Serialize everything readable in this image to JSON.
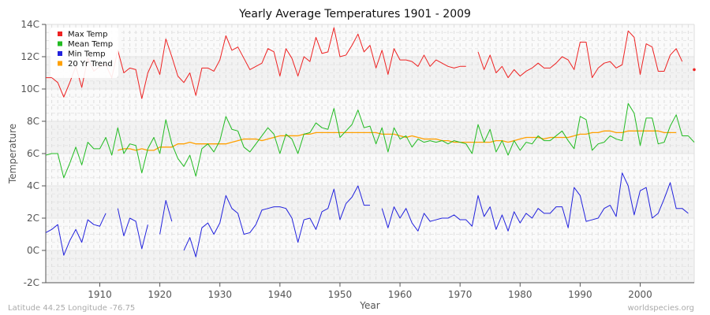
{
  "chart_data": {
    "type": "line",
    "title": "Yearly Average Temperatures 1901 - 2009",
    "xlabel": "Year",
    "ylabel": "Temperature",
    "xlim": [
      1901,
      2009
    ],
    "ylim": [
      -2,
      14
    ],
    "x_ticks": [
      1910,
      1920,
      1930,
      1940,
      1950,
      1960,
      1970,
      1980,
      1990,
      2000
    ],
    "y_ticks": [
      -2,
      0,
      2,
      4,
      6,
      8,
      10,
      12,
      14
    ],
    "y_tick_labels": [
      "-2C",
      "0C",
      "2C",
      "4C",
      "6C",
      "8C",
      "10C",
      "12C",
      "14C"
    ],
    "grid": true,
    "legend_position": "top-left",
    "start_year": 1901,
    "series": [
      {
        "name": "Max Temp",
        "color": "#ee2222",
        "values": [
          10.7,
          10.7,
          10.4,
          9.5,
          10.4,
          11.4,
          10.1,
          11.9,
          11.1,
          11.4,
          11.5,
          10.7,
          12.4,
          11.0,
          11.3,
          11.2,
          9.4,
          11.0,
          11.8,
          10.9,
          13.1,
          12.0,
          10.8,
          10.4,
          11.0,
          9.6,
          11.3,
          11.3,
          11.1,
          11.8,
          13.3,
          12.4,
          12.6,
          11.9,
          11.2,
          11.4,
          11.6,
          12.5,
          12.3,
          10.8,
          12.5,
          11.9,
          10.8,
          12.0,
          11.7,
          13.2,
          12.2,
          12.3,
          13.8,
          12.0,
          12.1,
          12.7,
          13.4,
          12.3,
          12.7,
          11.3,
          12.4,
          10.9,
          12.5,
          11.8,
          11.8,
          11.7,
          11.4,
          12.1,
          11.4,
          11.8,
          11.6,
          11.4,
          11.3,
          11.4,
          11.4,
          null,
          12.3,
          11.2,
          12.1,
          11.0,
          11.4,
          10.7,
          11.2,
          10.8,
          11.1,
          11.3,
          11.6,
          11.3,
          11.3,
          11.6,
          12.0,
          11.8,
          11.2,
          12.9,
          12.9,
          10.7,
          11.3,
          11.6,
          11.7,
          11.3,
          11.5,
          13.6,
          13.2,
          10.9,
          12.8,
          12.6,
          11.1,
          11.1,
          12.1,
          12.5,
          11.7,
          null,
          11.2
        ]
      },
      {
        "name": "Mean Temp",
        "color": "#22bb22",
        "values": [
          5.9,
          6.0,
          6.0,
          4.5,
          5.4,
          6.4,
          5.3,
          6.7,
          6.3,
          6.3,
          7.0,
          5.9,
          7.6,
          6.0,
          6.6,
          6.5,
          4.8,
          6.3,
          7.0,
          6.0,
          8.1,
          6.6,
          5.7,
          5.2,
          5.9,
          4.6,
          6.3,
          6.6,
          6.1,
          6.8,
          8.3,
          7.5,
          7.4,
          6.4,
          6.1,
          6.6,
          7.1,
          7.6,
          7.2,
          6.0,
          7.2,
          6.9,
          6.0,
          7.2,
          7.3,
          7.9,
          7.6,
          7.5,
          8.8,
          7.0,
          7.4,
          7.8,
          8.7,
          7.6,
          7.7,
          6.6,
          7.6,
          6.1,
          7.6,
          6.9,
          7.1,
          6.4,
          6.9,
          6.7,
          6.8,
          6.7,
          6.8,
          6.6,
          6.8,
          6.7,
          6.6,
          6.0,
          7.8,
          6.7,
          7.5,
          6.1,
          6.8,
          5.9,
          6.8,
          6.2,
          6.7,
          6.6,
          7.1,
          6.8,
          6.8,
          7.1,
          7.4,
          6.8,
          6.3,
          8.3,
          8.1,
          6.2,
          6.6,
          6.7,
          7.1,
          6.9,
          6.8,
          9.1,
          8.5,
          6.5,
          8.2,
          8.2,
          6.6,
          6.7,
          7.7,
          8.4,
          7.1,
          7.1,
          6.7
        ]
      },
      {
        "name": "Min Temp",
        "color": "#2222dd",
        "values": [
          1.1,
          1.3,
          1.6,
          -0.3,
          0.6,
          1.3,
          0.5,
          1.9,
          1.6,
          1.5,
          2.3,
          null,
          2.6,
          0.9,
          2.0,
          1.8,
          0.1,
          1.6,
          null,
          1.0,
          3.1,
          1.8,
          null,
          0.0,
          0.8,
          -0.4,
          1.4,
          1.7,
          1.0,
          1.7,
          3.4,
          2.6,
          2.3,
          1.0,
          1.1,
          1.6,
          2.5,
          2.6,
          2.7,
          2.7,
          2.6,
          2.0,
          0.5,
          1.9,
          2.0,
          1.3,
          2.4,
          2.6,
          3.8,
          1.9,
          2.9,
          3.3,
          4.0,
          2.8,
          2.8,
          null,
          2.6,
          1.4,
          2.7,
          2.0,
          2.6,
          1.7,
          1.2,
          2.3,
          1.8,
          1.9,
          2.0,
          2.0,
          2.2,
          1.9,
          1.9,
          1.5,
          3.4,
          2.1,
          2.7,
          1.3,
          2.2,
          1.2,
          2.4,
          1.7,
          2.3,
          2.0,
          2.6,
          2.3,
          2.3,
          2.7,
          2.7,
          1.4,
          3.9,
          3.4,
          1.8,
          1.9,
          2.0,
          2.6,
          2.8,
          2.1,
          4.8,
          4.0,
          2.2,
          3.7,
          3.9,
          2.0,
          2.3,
          3.2,
          4.2,
          2.6,
          2.6,
          2.3,
          null
        ]
      },
      {
        "name": "20 Yr Trend",
        "color": "#ffa000",
        "start_year": 1913,
        "values": [
          6.2,
          6.3,
          6.3,
          6.2,
          6.3,
          6.2,
          6.2,
          6.4,
          6.4,
          6.4,
          6.6,
          6.6,
          6.7,
          6.6,
          6.6,
          6.6,
          6.6,
          6.6,
          6.6,
          6.7,
          6.8,
          6.9,
          6.9,
          6.9,
          6.8,
          6.9,
          7.0,
          7.1,
          7.1,
          7.1,
          7.1,
          7.2,
          7.2,
          7.3,
          7.3,
          7.3,
          7.3,
          7.3,
          7.3,
          7.3,
          7.3,
          7.3,
          7.3,
          7.3,
          7.2,
          7.2,
          7.2,
          7.1,
          7.0,
          7.1,
          7.0,
          6.9,
          6.9,
          6.9,
          6.8,
          6.8,
          6.7,
          6.7,
          6.7,
          6.7,
          6.7,
          6.7,
          6.7,
          6.8,
          6.8,
          6.7,
          6.8,
          6.9,
          7.0,
          7.0,
          7.0,
          6.9,
          7.0,
          7.0,
          7.0,
          7.0,
          7.1,
          7.2,
          7.2,
          7.3,
          7.3,
          7.4,
          7.4,
          7.3,
          7.3,
          7.4,
          7.4,
          7.4,
          7.4,
          7.4,
          7.4,
          7.3,
          7.3,
          7.3
        ]
      }
    ]
  },
  "footer": {
    "left": "Latitude 44.25 Longitude -76.75",
    "right": "worldspecies.org"
  }
}
